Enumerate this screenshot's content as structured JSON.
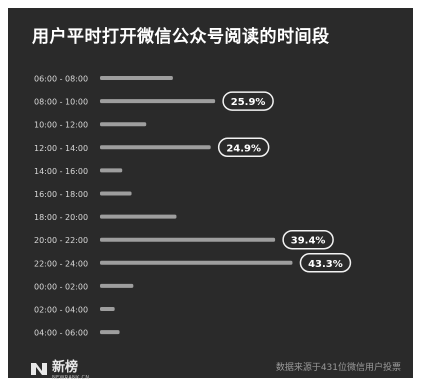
{
  "chart_data": {
    "type": "bar",
    "orientation": "horizontal",
    "title": "用户平时打开微信公众号阅读的时间段",
    "xlabel": "",
    "ylabel": "",
    "xlim": [
      0,
      45
    ],
    "grid": false,
    "categories": [
      "06:00 - 08:00",
      "08:00 - 10:00",
      "10:00 - 12:00",
      "12:00 - 14:00",
      "14:00 - 16:00",
      "16:00 - 18:00",
      "18:00 - 20:00",
      "20:00 - 22:00",
      "22:00 - 24:00",
      "00:00 - 02:00",
      "02:00 - 04:00",
      "04:00 - 06:00"
    ],
    "values": [
      16.4,
      25.9,
      10.4,
      24.9,
      5.0,
      7.1,
      17.2,
      39.4,
      43.3,
      7.5,
      3.3,
      4.4
    ],
    "data_labels": [
      "",
      "25.9%",
      "",
      "24.9%",
      "",
      "",
      "",
      "39.4%",
      "43.3%",
      "",
      "",
      ""
    ],
    "colors": {
      "background": "#2a2a2a",
      "bar": "#9e9e9e",
      "text": "#d8d8d8",
      "badge_border": "#f2f2f2"
    }
  },
  "brand": {
    "name": "新榜",
    "sub": "NEWRANK.CN",
    "icon": "newrank-logo-icon"
  },
  "source_note": "数据来源于431位微信用户投票"
}
